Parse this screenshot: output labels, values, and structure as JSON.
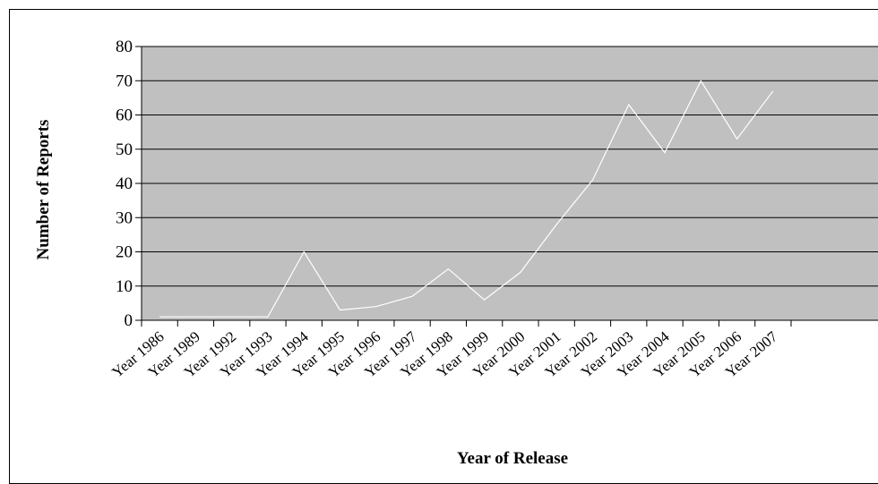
{
  "chart_data": {
    "type": "line",
    "title": "",
    "xlabel": "Year of Release",
    "ylabel": "Number of Reports",
    "categories": [
      "Year 1986",
      "Year 1989",
      "Year 1992",
      "Year 1993",
      "Year 1994",
      "Year 1995",
      "Year 1996",
      "Year 1997",
      "Year 1998",
      "Year 1999",
      "Year 2000",
      "Year 2001",
      "Year 2002",
      "Year 2003",
      "Year 2004",
      "Year 2005",
      "Year 2006",
      "Year 2007"
    ],
    "series": [
      {
        "values": [
          1,
          1,
          1,
          1,
          20,
          3,
          4,
          7,
          15,
          6,
          14,
          28,
          41,
          63,
          49,
          70,
          53,
          67
        ]
      }
    ],
    "ylim": [
      0,
      80
    ],
    "yticks": [
      "0",
      "10",
      "20",
      "30",
      "40",
      "50",
      "60",
      "70",
      "80"
    ],
    "grid": true,
    "legend": "none",
    "colors": {
      "plot_background": "#c0c0c0",
      "line": "#ffffff",
      "gridline": "#000000",
      "frame": "#000000"
    }
  }
}
